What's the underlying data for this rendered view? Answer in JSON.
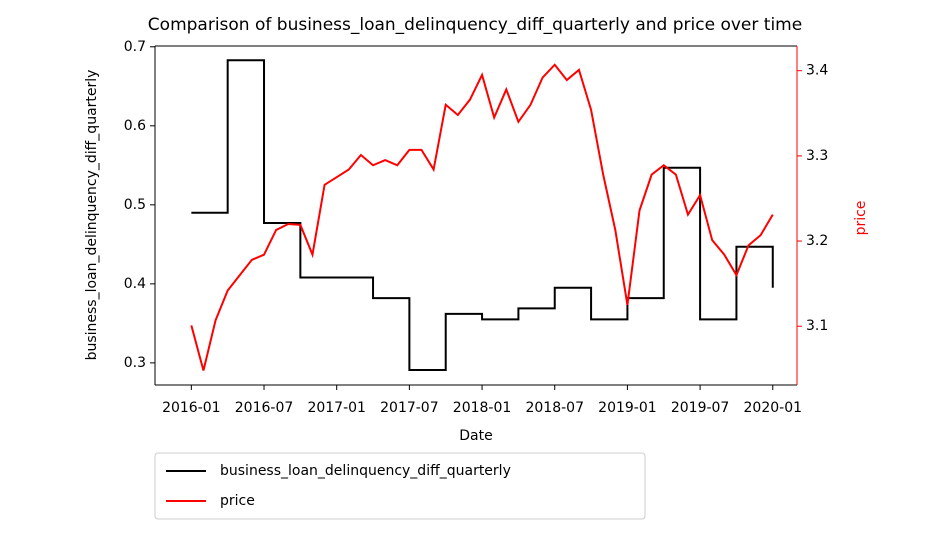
{
  "chart_data": {
    "type": "line",
    "title": "Comparison of business_loan_delinquency_diff_quarterly and price over time",
    "xlabel": "Date",
    "ylabel": "business_loan_delinquency_diff_quarterly",
    "y2label": "price",
    "xlim": [
      "2015-10",
      "2020-03"
    ],
    "xticks": [
      "2016-01",
      "2016-07",
      "2017-01",
      "2017-07",
      "2018-01",
      "2018-07",
      "2019-01",
      "2019-07",
      "2020-01"
    ],
    "ylim": [
      0.272,
      0.701
    ],
    "yticks": [
      0.3,
      0.4,
      0.5,
      0.6,
      0.7
    ],
    "y2lim": [
      3.031,
      3.429
    ],
    "y2ticks": [
      3.1,
      3.2,
      3.3,
      3.4
    ],
    "legend": "below",
    "series": [
      {
        "name": "business_loan_delinquency_diff_quarterly",
        "color": "#000000",
        "axis": "y",
        "x": [
          "2016-01",
          "2016-04",
          "2016-04",
          "2016-07",
          "2016-07",
          "2016-10",
          "2016-10",
          "2017-04",
          "2017-04",
          "2017-07",
          "2017-07",
          "2017-10",
          "2017-10",
          "2018-01",
          "2018-01",
          "2018-04",
          "2018-04",
          "2018-07",
          "2018-07",
          "2018-10",
          "2018-10",
          "2019-01",
          "2019-01",
          "2019-04",
          "2019-04",
          "2019-07",
          "2019-07",
          "2019-10",
          "2019-10",
          "2020-01",
          "2020-01"
        ],
        "values": [
          0.49,
          0.49,
          0.683,
          0.683,
          0.477,
          0.477,
          0.408,
          0.408,
          0.382,
          0.382,
          0.291,
          0.291,
          0.362,
          0.362,
          0.355,
          0.355,
          0.369,
          0.369,
          0.395,
          0.395,
          0.355,
          0.355,
          0.382,
          0.382,
          0.547,
          0.547,
          0.355,
          0.355,
          0.447,
          0.447,
          0.395
        ]
      },
      {
        "name": "price",
        "color": "#ff0000",
        "axis": "y2",
        "x": [
          "2016-01",
          "2016-02",
          "2016-03",
          "2016-04",
          "2016-05",
          "2016-06",
          "2016-07",
          "2016-08",
          "2016-09",
          "2016-10",
          "2016-11",
          "2016-12",
          "2017-01",
          "2017-02",
          "2017-03",
          "2017-04",
          "2017-05",
          "2017-06",
          "2017-07",
          "2017-08",
          "2017-09",
          "2017-10",
          "2017-11",
          "2017-12",
          "2018-01",
          "2018-02",
          "2018-03",
          "2018-04",
          "2018-05",
          "2018-06",
          "2018-07",
          "2018-08",
          "2018-09",
          "2018-10",
          "2018-11",
          "2018-12",
          "2019-01",
          "2019-02",
          "2019-03",
          "2019-04",
          "2019-05",
          "2019-06",
          "2019-07",
          "2019-08",
          "2019-09",
          "2019-10",
          "2019-11",
          "2019-12",
          "2020-01"
        ],
        "values": [
          3.101,
          3.048,
          3.107,
          3.142,
          3.16,
          3.178,
          3.184,
          3.213,
          3.22,
          3.219,
          3.184,
          3.266,
          3.275,
          3.284,
          3.301,
          3.289,
          3.295,
          3.289,
          3.307,
          3.307,
          3.284,
          3.36,
          3.348,
          3.366,
          3.395,
          3.345,
          3.378,
          3.34,
          3.36,
          3.392,
          3.407,
          3.389,
          3.401,
          3.354,
          3.278,
          3.213,
          3.125,
          3.236,
          3.278,
          3.289,
          3.278,
          3.231,
          3.254,
          3.201,
          3.184,
          3.16,
          3.195,
          3.207,
          3.231
        ]
      }
    ]
  }
}
